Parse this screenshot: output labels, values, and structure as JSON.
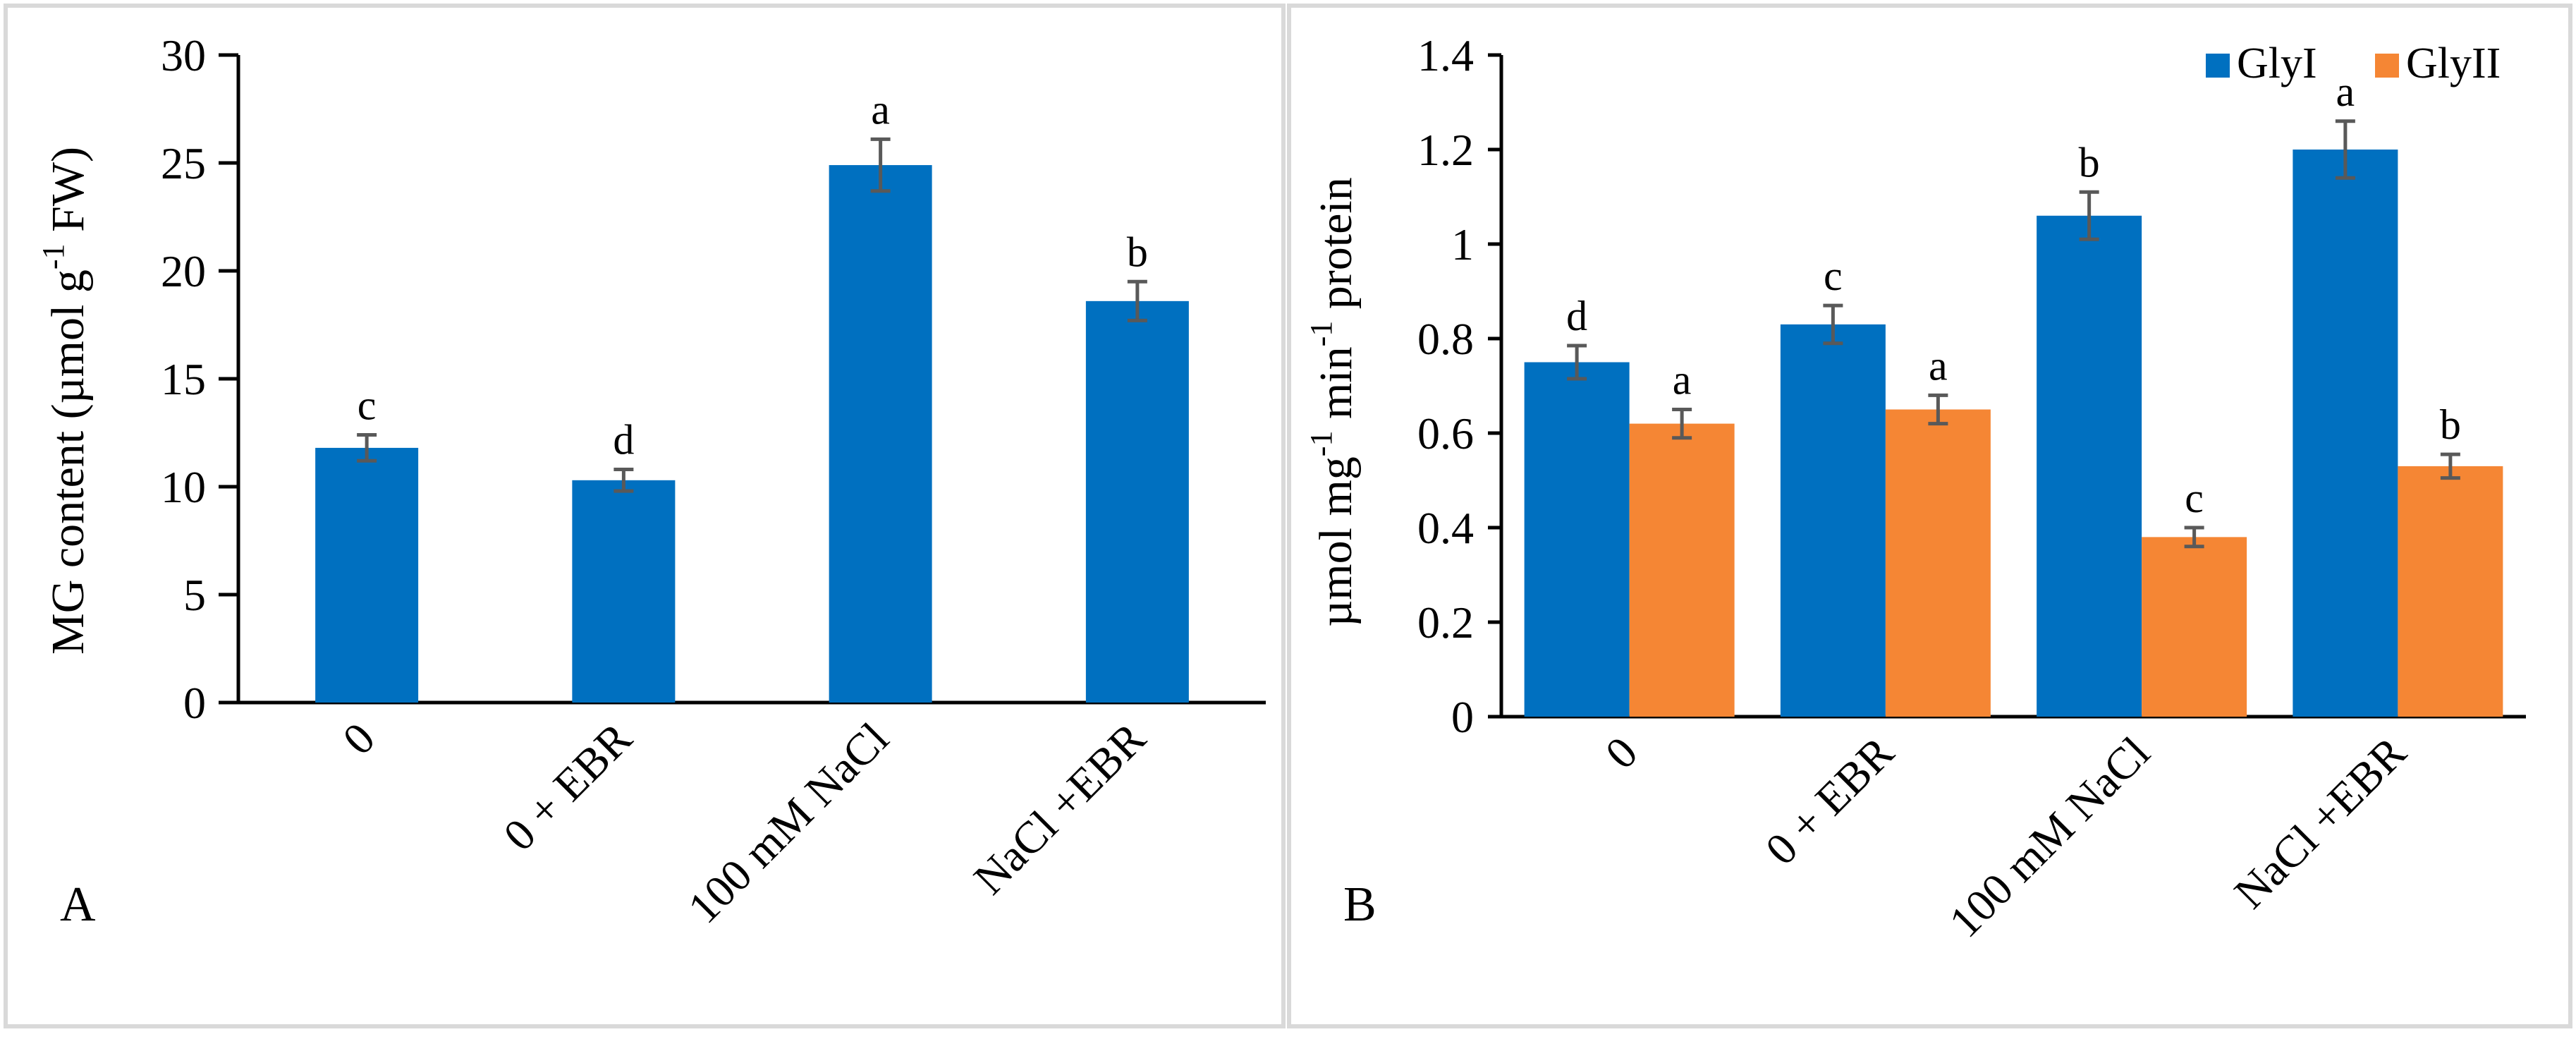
{
  "colors": {
    "blue": "#0070C0",
    "orange": "#F58634",
    "error_bar": "#595959",
    "frame": "#d9d9d9"
  },
  "chart_data": [
    {
      "panel": "A",
      "type": "bar",
      "title": "",
      "xlabel": "",
      "ylabel": "MG content (µmol g-1 FW)",
      "ylabel_parts": {
        "pre": "MG content (µmol g",
        "sup": "-1",
        "post": " FW)"
      },
      "ylim": [
        0,
        30
      ],
      "yticks": [
        0,
        5,
        10,
        15,
        20,
        25,
        30
      ],
      "categories": [
        "0",
        "0 + EBR",
        "100 mM NaCl",
        "NaCl +EBR"
      ],
      "series": [
        {
          "name": "MG",
          "color": "#0070C0",
          "values": [
            11.8,
            10.3,
            24.9,
            18.6
          ],
          "errors": [
            0.6,
            0.5,
            1.2,
            0.9
          ],
          "labels": [
            "c",
            "d",
            "a",
            "b"
          ]
        }
      ]
    },
    {
      "panel": "B",
      "type": "bar",
      "title": "",
      "xlabel": "",
      "ylabel": "µmol mg-1 min-1 protein",
      "ylabel_parts": {
        "pre": "µmol mg",
        "sup1": "-1",
        "mid": " min",
        "sup2": "-1",
        "post": " protein"
      },
      "ylim": [
        0,
        1.4
      ],
      "yticks": [
        0,
        0.2,
        0.4,
        0.6,
        0.8,
        1,
        1.2,
        1.4
      ],
      "ytick_labels": [
        "0",
        "0.2",
        "0.4",
        "0.6",
        "0.8",
        "1",
        "1.2",
        "1.4"
      ],
      "categories": [
        "0",
        "0 + EBR",
        "100 mM NaCl",
        "NaCl +EBR"
      ],
      "legend": [
        "GlyI",
        "GlyII"
      ],
      "legend_position": "top-right",
      "series": [
        {
          "name": "GlyI",
          "color": "#0070C0",
          "values": [
            0.75,
            0.83,
            1.06,
            1.2
          ],
          "errors": [
            0.035,
            0.04,
            0.05,
            0.06
          ],
          "labels": [
            "d",
            "c",
            "b",
            "a"
          ]
        },
        {
          "name": "GlyII",
          "color": "#F58634",
          "values": [
            0.62,
            0.65,
            0.38,
            0.53
          ],
          "errors": [
            0.03,
            0.03,
            0.02,
            0.025
          ],
          "labels": [
            "a",
            "a",
            "c",
            "b"
          ]
        }
      ]
    }
  ]
}
